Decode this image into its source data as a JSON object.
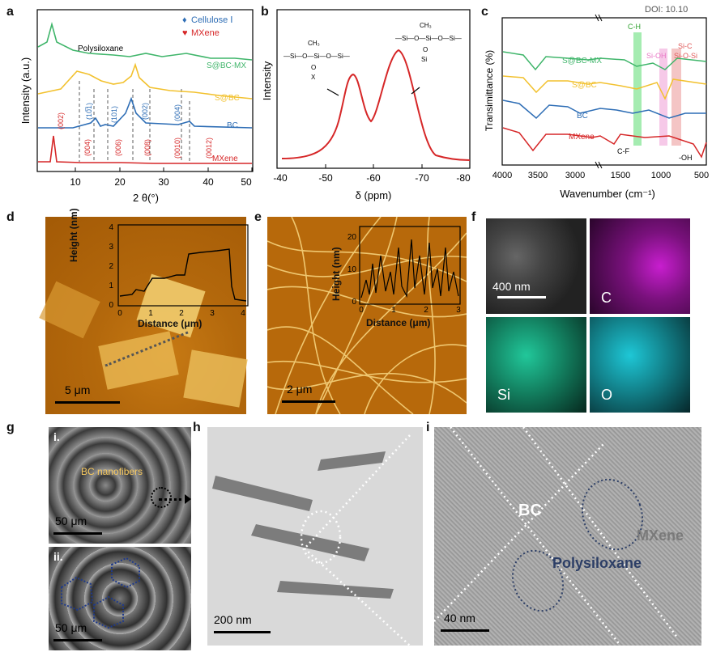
{
  "doi_text": "DOI: 10.10",
  "panels": {
    "a": {
      "label": "a",
      "ylabel": "Intensity (a.u.)",
      "xlabel": "2 θ(°)",
      "ticks": [
        "10",
        "20",
        "30",
        "40",
        "50"
      ],
      "legend": [
        {
          "marker": "♦",
          "text": "Cellulose Ⅰ",
          "color": "#2d6db5"
        },
        {
          "marker": "♥",
          "text": "MXene",
          "color": "#d62728"
        }
      ],
      "annot_polysiloxane": "Polysiloxane",
      "series": [
        {
          "name": "S@BC-MX",
          "color": "#3fb56a"
        },
        {
          "name": "S@BC",
          "color": "#f2c12e"
        },
        {
          "name": "BC",
          "color": "#2d6db5"
        },
        {
          "name": "MXene",
          "color": "#d62728"
        }
      ],
      "bc_peaks": [
        "(10̅1)",
        "(101)",
        "(002)",
        "(004)"
      ],
      "mx_peaks": [
        "(002)",
        "(004)",
        "(006)",
        "(008)",
        "(0010)",
        "(0012)"
      ]
    },
    "b": {
      "label": "b",
      "ylabel": "Intensity",
      "xlabel": "δ (ppm)",
      "ticks": [
        "-40",
        "-50",
        "-60",
        "-70",
        "-80"
      ],
      "line_color": "#d62728",
      "struct_left": {
        "top": "CH₃",
        "row": "—Si—O—Si—O—Si—",
        "bottom1": "O",
        "bottom2": "X"
      },
      "struct_right": {
        "top": "CH₃",
        "row": "—Si—O—Si—O—Si—",
        "bottom1": "O",
        "bottom2": "Si"
      }
    },
    "c": {
      "label": "c",
      "ylabel": "Transimittance (%)",
      "xlabel": "Wavenumber (cm⁻¹)",
      "ticks": [
        "4000",
        "3500",
        "3000",
        "1500",
        "1000",
        "500"
      ],
      "series": [
        {
          "name": "S@BC-MX",
          "color": "#3fb56a"
        },
        {
          "name": "S@BC",
          "color": "#f2c12e"
        },
        {
          "name": "BC",
          "color": "#2d6db5"
        },
        {
          "name": "MXene",
          "color": "#d62728"
        }
      ],
      "bands": [
        {
          "name": "C-H",
          "color": "#4cd964"
        },
        {
          "name": "Si-OH",
          "color": "#e879c6"
        },
        {
          "name": "Si-C",
          "color": "#e05a5a"
        },
        {
          "name": "Si-O-Si",
          "color": "#e05a5a"
        }
      ],
      "annot_cf": "C-F",
      "annot_oh": "-OH"
    },
    "d": {
      "label": "d",
      "scale": "5 μm",
      "inset_ylabel": "Height (nm)",
      "inset_xlabel": "Distance (μm)",
      "inset_yticks": [
        "0",
        "1",
        "2",
        "3",
        "4"
      ],
      "inset_xticks": [
        "0",
        "1",
        "2",
        "3",
        "4"
      ]
    },
    "e": {
      "label": "e",
      "scale": "2 μm",
      "inset_ylabel": "Height (nm)",
      "inset_xlabel": "Distance (μm)",
      "inset_yticks": [
        "0",
        "10",
        "20"
      ],
      "inset_xticks": [
        "0",
        "1",
        "2",
        "3"
      ]
    },
    "f": {
      "label": "f",
      "scale": "400 nm",
      "maps": [
        {
          "name": "C",
          "color": "#c81ecf"
        },
        {
          "name": "Si",
          "color": "#21c79a"
        },
        {
          "name": "O",
          "color": "#1ec7d6"
        }
      ]
    },
    "g": {
      "label": "g",
      "sub_i": "i.",
      "sub_ii": "ii.",
      "annot": "BC nanofibers",
      "scale": "50 μm"
    },
    "h": {
      "label": "h",
      "scale": "200 nm"
    },
    "i": {
      "label": "i",
      "scale": "40 nm",
      "bc": "BC",
      "mxene": "MXene",
      "polysiloxane": "Polysiloxane"
    }
  }
}
